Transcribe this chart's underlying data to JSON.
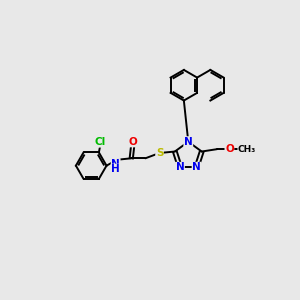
{
  "bg_color": "#e8e8e8",
  "bond_color": "#000000",
  "bond_lw": 1.4,
  "atom_colors": {
    "N": "#0000ee",
    "O": "#ee0000",
    "S": "#bbbb00",
    "Cl": "#00bb00",
    "C": "#000000",
    "H": "#000000"
  },
  "font_size": 7.5
}
